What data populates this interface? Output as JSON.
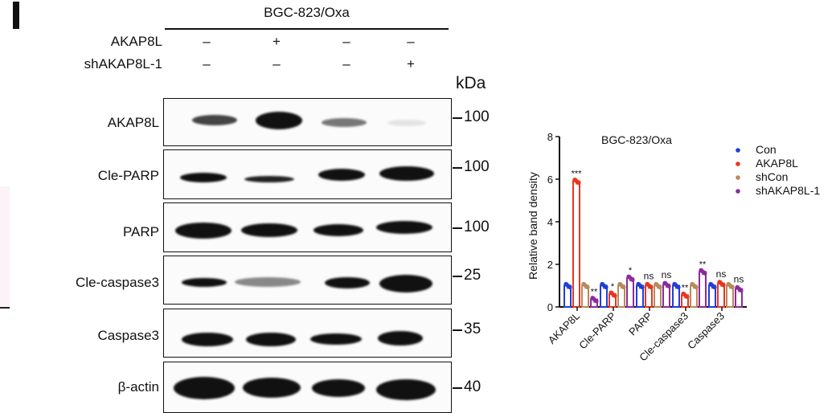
{
  "figure": {
    "panel_letter": "I",
    "cell_line": "BGC-823/Oxa",
    "conditions": [
      {
        "label": "AKAP8L",
        "signs": [
          "–",
          "+",
          "–",
          "–"
        ]
      },
      {
        "label": "shAKAP8L-1",
        "signs": [
          "–",
          "–",
          "–",
          "+"
        ]
      }
    ],
    "kda_label": "kDa",
    "blots": [
      {
        "label": "AKAP8L",
        "mw": "100"
      },
      {
        "label": "Cle-PARP",
        "mw": "100"
      },
      {
        "label": "PARP",
        "mw": "100"
      },
      {
        "label": "Cle-caspase3",
        "mw": "25"
      },
      {
        "label": "Caspase3",
        "mw": "35"
      },
      {
        "label": "β-actin",
        "mw": "40"
      }
    ]
  },
  "chart_data": {
    "type": "bar",
    "title": "BGC-823/Oxa",
    "xlabel": "",
    "ylabel": "Relative  band density",
    "ylim": [
      0,
      8
    ],
    "yticks": [
      "0",
      "2",
      "4",
      "6",
      "8"
    ],
    "categories": [
      "AKAP8L",
      "Cle-PARP",
      "PARP",
      "Cle-caspase3",
      "Caspase3"
    ],
    "series": [
      {
        "name": "Con",
        "color": "#1f3fd6",
        "values": [
          1.0,
          1.0,
          1.0,
          1.0,
          1.0
        ]
      },
      {
        "name": "AKAP8L",
        "color": "#e8351f",
        "values": [
          5.9,
          0.6,
          1.0,
          0.55,
          1.1
        ]
      },
      {
        "name": "shCon",
        "color": "#b8895a",
        "values": [
          1.0,
          1.0,
          1.0,
          1.0,
          1.0
        ]
      },
      {
        "name": "shAKAP8L-1",
        "color": "#8e2a9a",
        "values": [
          0.35,
          1.35,
          1.05,
          1.65,
          0.85
        ]
      }
    ],
    "annotations": [
      {
        "category": "AKAP8L",
        "series": "AKAP8L",
        "text": "***"
      },
      {
        "category": "AKAP8L",
        "series": "shAKAP8L-1",
        "text": "**"
      },
      {
        "category": "Cle-PARP",
        "series": "AKAP8L",
        "text": "*"
      },
      {
        "category": "Cle-PARP",
        "series": "shAKAP8L-1",
        "text": "*"
      },
      {
        "category": "PARP",
        "series": "AKAP8L",
        "text": "ns"
      },
      {
        "category": "PARP",
        "series": "shAKAP8L-1",
        "text": "ns"
      },
      {
        "category": "Cle-caspase3",
        "series": "AKAP8L",
        "text": "**"
      },
      {
        "category": "Cle-caspase3",
        "series": "shAKAP8L-1",
        "text": "**"
      },
      {
        "category": "Caspase3",
        "series": "AKAP8L",
        "text": "ns"
      },
      {
        "category": "Caspase3",
        "series": "shAKAP8L-1",
        "text": "ns"
      }
    ],
    "legend": {
      "position": "right",
      "entries": [
        "Con",
        "AKAP8L",
        "shCon",
        "shAKAP8L-1"
      ]
    },
    "grid": false
  }
}
